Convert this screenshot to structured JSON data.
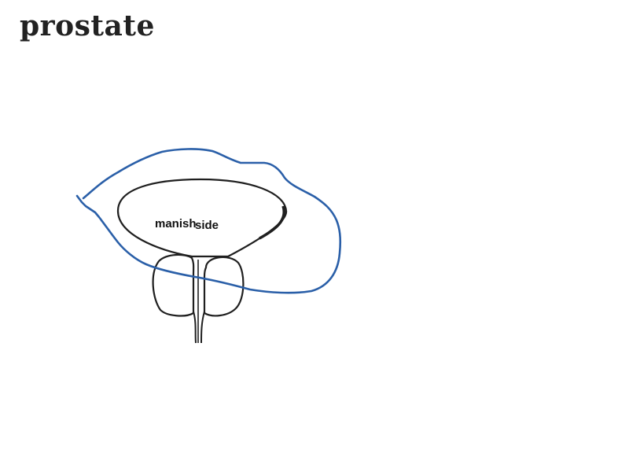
{
  "page": {
    "title": "prostate"
  },
  "diagram": {
    "subject": "prostate",
    "labels": {
      "primary": "manish",
      "secondary": "side"
    },
    "colors": {
      "outline": "#1f1f1f",
      "annotation": "#2a5fa8",
      "background": "#ffffff"
    }
  }
}
